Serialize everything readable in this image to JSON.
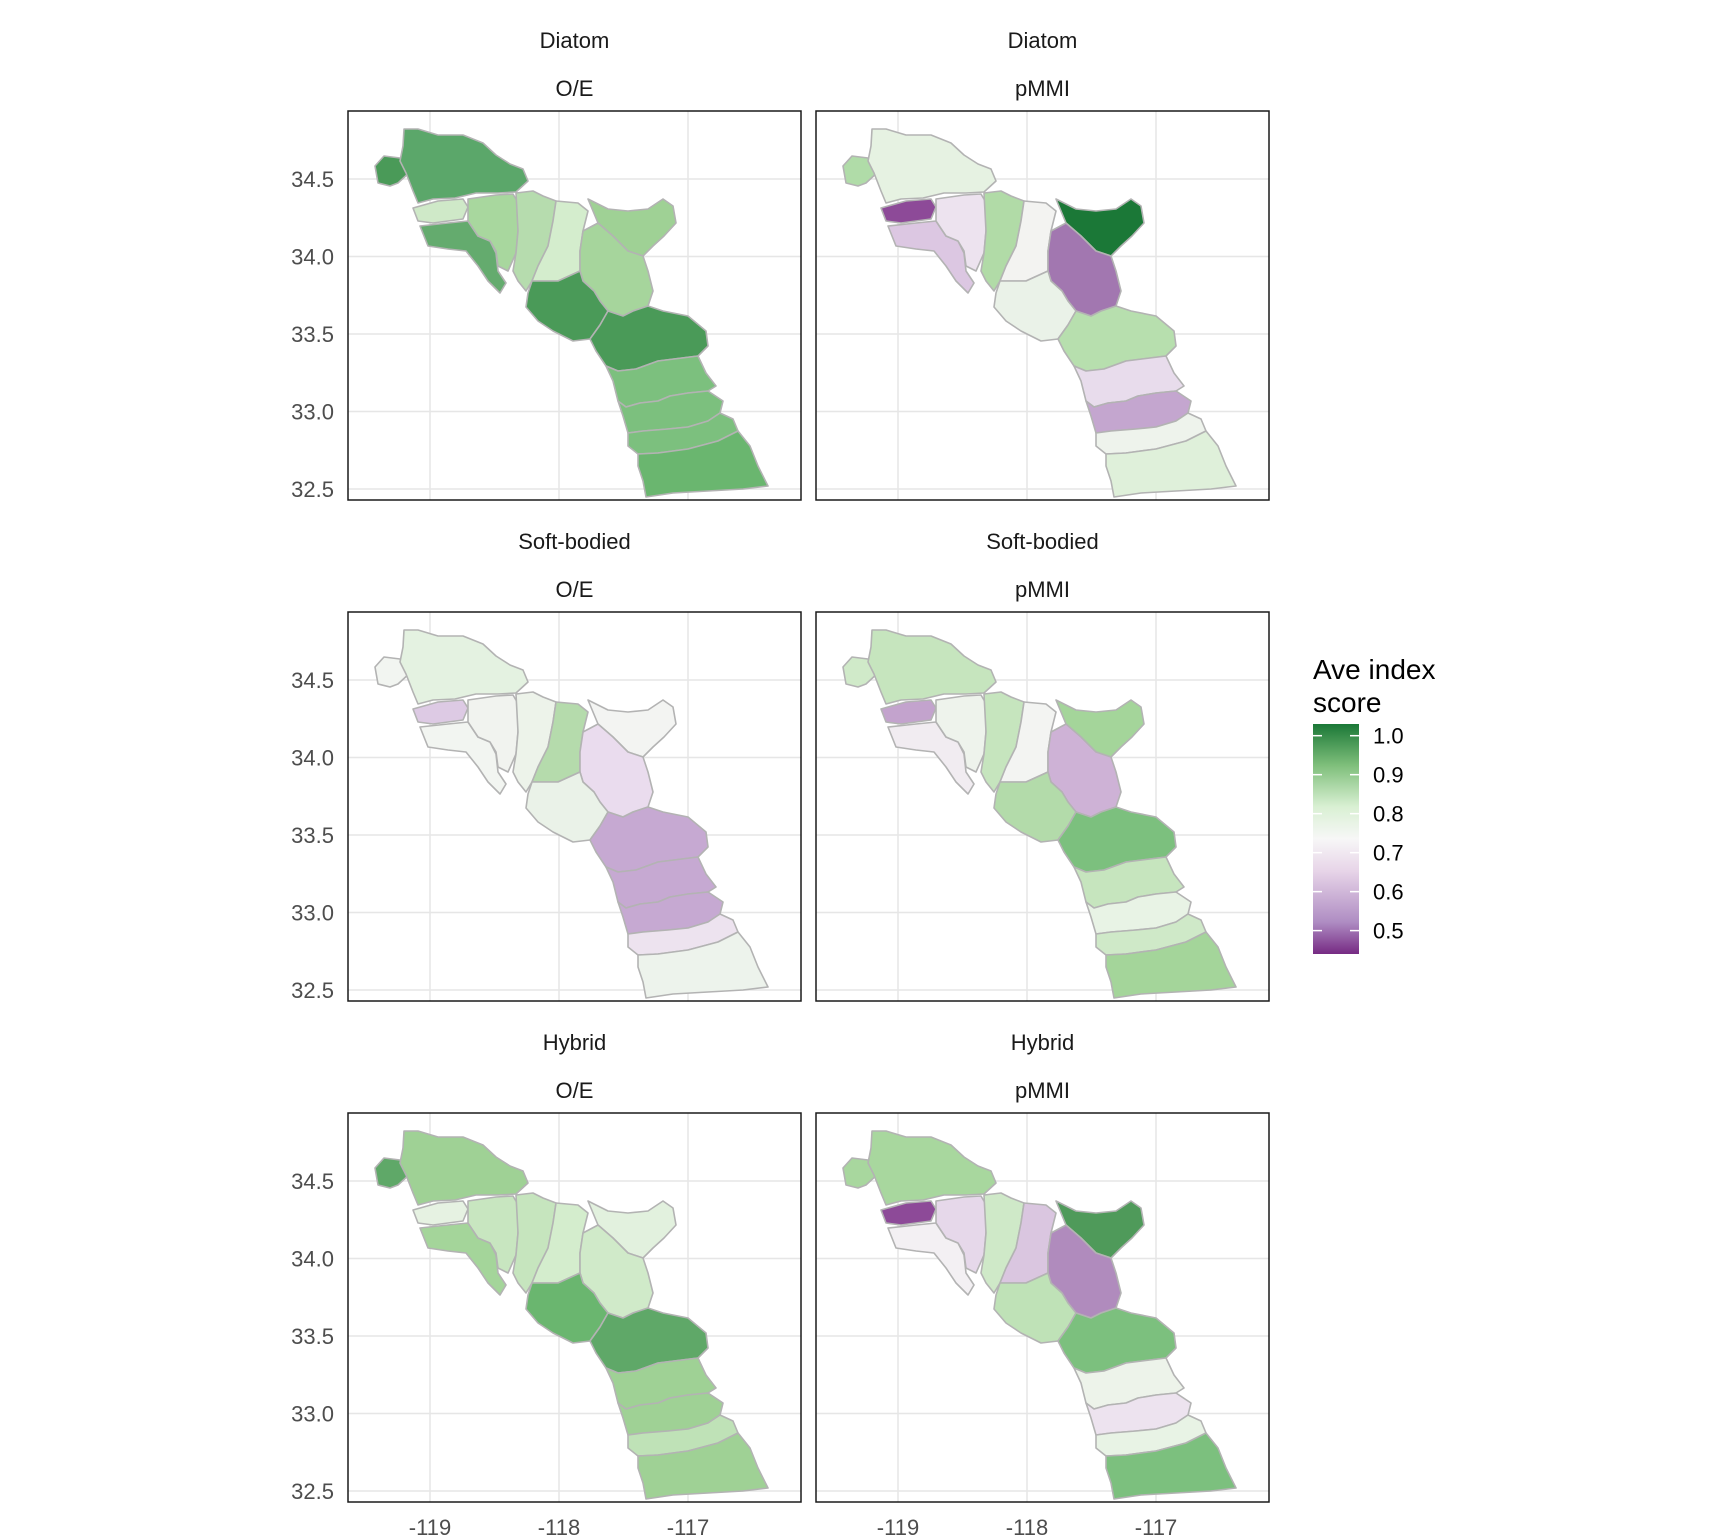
{
  "legend": {
    "title_line1": "Ave index",
    "title_line2": "score",
    "labels": [
      "1.0",
      "0.9",
      "0.8",
      "0.7",
      "0.6",
      "0.5"
    ],
    "values": [
      1.0,
      0.9,
      0.8,
      0.7,
      0.6,
      0.5
    ],
    "colors": [
      "#1b7837",
      "#7fbf7b",
      "#d9f0d3",
      "#f7f7f7",
      "#e7d4e8",
      "#af8dc3",
      "#762a83"
    ]
  },
  "axes": {
    "x_ticks": [
      "-119",
      "-118",
      "-117"
    ],
    "x_values": [
      -119,
      -118,
      -117
    ],
    "y_ticks": [
      "34.5",
      "34.0",
      "33.5",
      "33.0",
      "32.5"
    ],
    "y_values": [
      34.5,
      34.0,
      33.5,
      33.0,
      32.5
    ]
  },
  "panels": [
    {
      "assemblage": "Diatom",
      "index": "O/E",
      "region_colors": [
        "#4a9a58",
        "#5ba76a",
        "#cfe9c8",
        "#64ab6e",
        "#a8d79e",
        "#b6dcae",
        "#d4edcd",
        "#9fd195",
        "#a6d59c",
        "#4a9a58",
        "#4a9a58",
        "#7cc07e",
        "#7cc07e",
        "#7cc07e",
        "#6ab66f"
      ]
    },
    {
      "assemblage": "Diatom",
      "index": "pMMI",
      "region_colors": [
        "#b0dca8",
        "#e6f2e2",
        "#8d4a98",
        "#dcc7e2",
        "#ede3ef",
        "#b1dba7",
        "#f3f3f1",
        "#1b7837",
        "#a277b0",
        "#eaf2e8",
        "#b7dfae",
        "#e8dcec",
        "#c4a6cf",
        "#eef3ec",
        "#dff0da"
      ]
    },
    {
      "assemblage": "Soft-bodied",
      "index": "O/E",
      "region_colors": [
        "#f2f5f1",
        "#e4f2e1",
        "#ddcae4",
        "#f2f5f1",
        "#f1f3ef",
        "#edf3ea",
        "#b5dbac",
        "#f3f4f2",
        "#eadcee",
        "#eaf2e8",
        "#c6a9d2",
        "#c6a9d2",
        "#c6a9d2",
        "#ede3ef",
        "#edf3ec"
      ]
    },
    {
      "assemblage": "Soft-bodied",
      "index": "pMMI",
      "region_colors": [
        "#d0eac9",
        "#c6e5be",
        "#c3a3cd",
        "#f1ecf1",
        "#eef3ec",
        "#c6e5be",
        "#f3f4f2",
        "#a4d59a",
        "#ceb2d6",
        "#b3dbaa",
        "#7cc07e",
        "#c6e5be",
        "#e8f3e5",
        "#cfe9c8",
        "#a4d59a"
      ]
    },
    {
      "assemblage": "Hybrid",
      "index": "O/E",
      "region_colors": [
        "#5fa868",
        "#9fd195",
        "#e6f2e2",
        "#a4d59a",
        "#c8e6c0",
        "#c6e5be",
        "#d4edcd",
        "#e2f1de",
        "#d0eac9",
        "#6ab66f",
        "#5fa868",
        "#9fd195",
        "#9fd195",
        "#bfe2b7",
        "#9fd195"
      ]
    },
    {
      "assemblage": "Hybrid",
      "index": "pMMI",
      "region_colors": [
        "#a8d79e",
        "#a8d79e",
        "#8d4a98",
        "#f3f0f3",
        "#e6d8ea",
        "#cfe9c8",
        "#dac6e0",
        "#4f9a5a",
        "#b08bbd",
        "#bfe2b7",
        "#7cc07e",
        "#edf3ea",
        "#ede3ef",
        "#e8f3e5",
        "#7cc07e"
      ]
    }
  ]
}
